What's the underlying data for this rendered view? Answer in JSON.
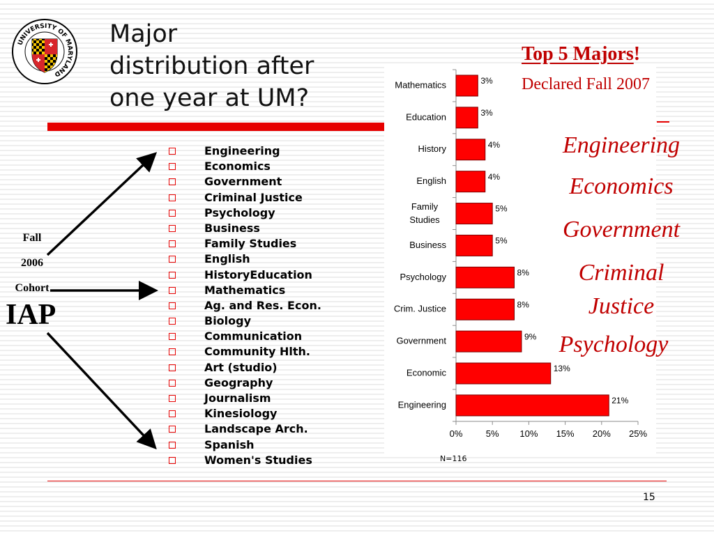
{
  "slide": {
    "title_lines": [
      "Major",
      "distribution after",
      "one year at UM?"
    ],
    "page_number": "15",
    "logo_text": "UNIVERSITY OF MARYLAND"
  },
  "cohort": {
    "fall": "Fall",
    "year": "2006",
    "cohort": "Cohort",
    "program": "IAP"
  },
  "majors_list": [
    "Engineering",
    "Economics",
    "Government",
    "Criminal Justice",
    "Psychology",
    "Business",
    "Family Studies",
    "English",
    "HistoryEducation",
    "Mathematics",
    "Ag. and Res. Econ.",
    "Biology",
    "Communication",
    "Community Hlth.",
    "Art (studio)",
    "Geography",
    "Journalism",
    "Kinesiology",
    "Landscape Arch.",
    "Spanish",
    "Women's Studies"
  ],
  "top5": {
    "heading": "Top 5 Majors",
    "heading_suffix": "!",
    "subheading": "Declared Fall 2007",
    "items": [
      "Engineering",
      "Economics",
      "Government",
      "Criminal Justice",
      "Psychology"
    ]
  },
  "chart_data": {
    "type": "bar",
    "orientation": "horizontal",
    "categories": [
      "Mathematics",
      "Education",
      "History",
      "English",
      "Family Studies",
      "Business",
      "Psychology",
      "Crim. Justice",
      "Government",
      "Economic",
      "Engineering"
    ],
    "values": [
      3,
      3,
      4,
      4,
      5,
      5,
      8,
      8,
      9,
      13,
      21
    ],
    "value_labels": [
      "3%",
      "3%",
      "4%",
      "4%",
      "5%",
      "5%",
      "8%",
      "8%",
      "9%",
      "13%",
      "21%"
    ],
    "xlim": [
      0,
      25
    ],
    "xticks": [
      "0%",
      "5%",
      "10%",
      "15%",
      "20%",
      "25%"
    ],
    "note": "N=116",
    "bar_color": "#ff0000",
    "grid": false,
    "title": "",
    "xlabel": "",
    "ylabel": ""
  }
}
